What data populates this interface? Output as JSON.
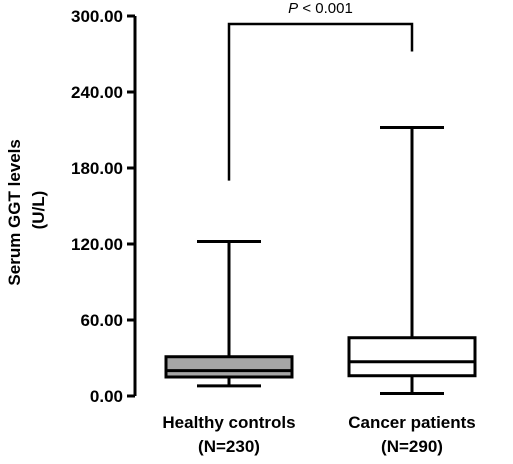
{
  "chart_data": {
    "type": "boxplot",
    "ylabel_line1": "Serum GGT levels",
    "ylabel_line2": "(U/L)",
    "ylim": [
      0,
      300
    ],
    "yticks": [
      {
        "value": 0,
        "label": "0.00"
      },
      {
        "value": 60,
        "label": "60.00"
      },
      {
        "value": 120,
        "label": "120.00"
      },
      {
        "value": 180,
        "label": "180.00"
      },
      {
        "value": 240,
        "label": "240.00"
      },
      {
        "value": 300,
        "label": "300.00"
      }
    ],
    "groups": [
      {
        "label": "Healthy controls",
        "n_label": "(N=230)",
        "min": 8,
        "q1": 15,
        "median": 20,
        "q3": 31,
        "max": 122,
        "fill": "#a6a6a6"
      },
      {
        "label": "Cancer patients",
        "n_label": "(N=290)",
        "min": 2,
        "q1": 16,
        "median": 27,
        "q3": 46,
        "max": 212,
        "fill": "#ffffff"
      }
    ],
    "significance": {
      "p_symbol": "P",
      "p_text": " < 0.001",
      "left_value": 170,
      "right_value": 272,
      "top_value": 300
    },
    "grid": false
  }
}
